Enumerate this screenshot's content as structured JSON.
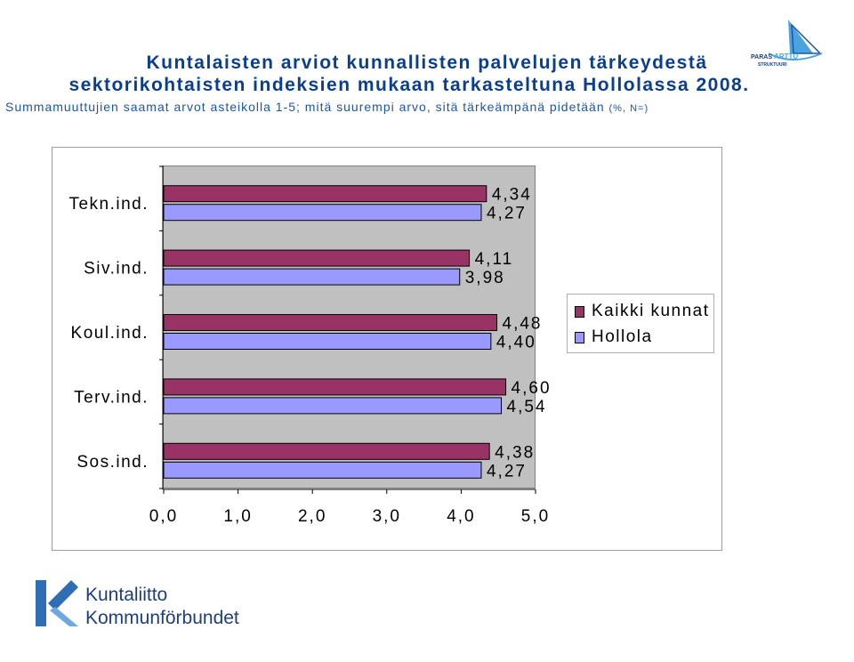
{
  "header": {
    "title_line1": "Kuntalaisten arviot kunnallisten palvelujen tärkeydestä",
    "title_line2": "sektorikohtaisten indeksien mukaan tarkasteltuna Hollolassa 2008.",
    "subtitle_main": "Summamuuttujien saamat arvot asteikolla 1-5; mitä suurempi arvo, sitä tärkeämpänä pidetään",
    "subtitle_small": "(%, N=)"
  },
  "logos": {
    "top_left_text": "PARAS",
    "top_right_text": "ARTTU",
    "top_sub_text": "STRUKTUURI",
    "bottom_line1": "Kuntaliitto",
    "bottom_line2": "Kommunförbundet"
  },
  "colors": {
    "series1": "#993366",
    "series2": "#9999ff",
    "plot_bg": "#c0c0c0",
    "title": "#0b3f8c"
  },
  "chart_data": {
    "type": "bar",
    "orientation": "horizontal",
    "categories": [
      "Tekn.ind.",
      "Siv.ind.",
      "Koul.ind.",
      "Terv.ind.",
      "Sos.ind."
    ],
    "series": [
      {
        "name": "Kaikki kunnat",
        "values": [
          4.34,
          4.11,
          4.48,
          4.6,
          4.38
        ],
        "labels": [
          "4,34",
          "4,11",
          "4,48",
          "4,60",
          "4,38"
        ]
      },
      {
        "name": "Hollola",
        "values": [
          4.27,
          3.98,
          4.4,
          4.54,
          4.27
        ],
        "labels": [
          "4,27",
          "3,98",
          "4,40",
          "4,54",
          "4,27"
        ]
      }
    ],
    "xlim": [
      0,
      5
    ],
    "x_ticks": [
      0,
      1,
      2,
      3,
      4,
      5
    ],
    "x_tick_labels": [
      "0,0",
      "1,0",
      "2,0",
      "3,0",
      "4,0",
      "5,0"
    ],
    "legend_position": "right",
    "grid": false
  }
}
